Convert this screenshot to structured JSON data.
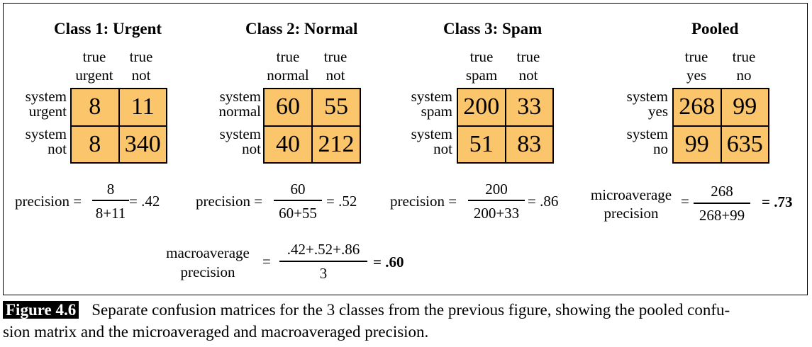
{
  "panels": [
    {
      "title": "Class 1: Urgent",
      "col1": [
        "true",
        "urgent"
      ],
      "col2": [
        "true",
        "not"
      ],
      "row1": [
        "system",
        "urgent"
      ],
      "row2": [
        "system",
        "not"
      ],
      "cells": [
        "8",
        "11",
        "8",
        "340"
      ]
    },
    {
      "title": "Class 2: Normal",
      "col1": [
        "true",
        "normal"
      ],
      "col2": [
        "true",
        "not"
      ],
      "row1": [
        "system",
        "normal"
      ],
      "row2": [
        "system",
        "not"
      ],
      "cells": [
        "60",
        "55",
        "40",
        "212"
      ]
    },
    {
      "title": "Class 3: Spam",
      "col1": [
        "true",
        "spam"
      ],
      "col2": [
        "true",
        "not"
      ],
      "row1": [
        "system",
        "spam"
      ],
      "row2": [
        "system",
        "not"
      ],
      "cells": [
        "200",
        "33",
        "51",
        "83"
      ]
    },
    {
      "title": "Pooled",
      "col1": [
        "true",
        "yes"
      ],
      "col2": [
        "true",
        "no"
      ],
      "row1": [
        "system",
        "yes"
      ],
      "row2": [
        "system",
        "no"
      ],
      "cells": [
        "268",
        "99",
        "99",
        "635"
      ]
    }
  ],
  "formulas": [
    {
      "label": "precision =",
      "num": "8",
      "den": "8+11",
      "result": "= .42"
    },
    {
      "label": "precision =",
      "num": "60",
      "den": "60+55",
      "result": "= .52"
    },
    {
      "label": "precision =",
      "num": "200",
      "den": "200+33",
      "result": "= .86"
    }
  ],
  "micro": {
    "label1": "microaverage",
    "label2": "precision",
    "eq": "=",
    "num": "268",
    "den": "268+99",
    "result": "= .73"
  },
  "macro": {
    "label1": "macroaverage",
    "label2": "precision",
    "eq": "=",
    "num": ".42+.52+.86",
    "den": "3",
    "result": "= .60"
  },
  "caption": {
    "label": "Figure 4.6",
    "line1": "Separate confusion matrices for the 3 classes from the previous figure, showing the pooled confu-",
    "line2": "sion matrix and the microaveraged and macroaveraged precision."
  },
  "colors": {
    "cell_fill": "#fbc56b",
    "border": "#000000"
  }
}
